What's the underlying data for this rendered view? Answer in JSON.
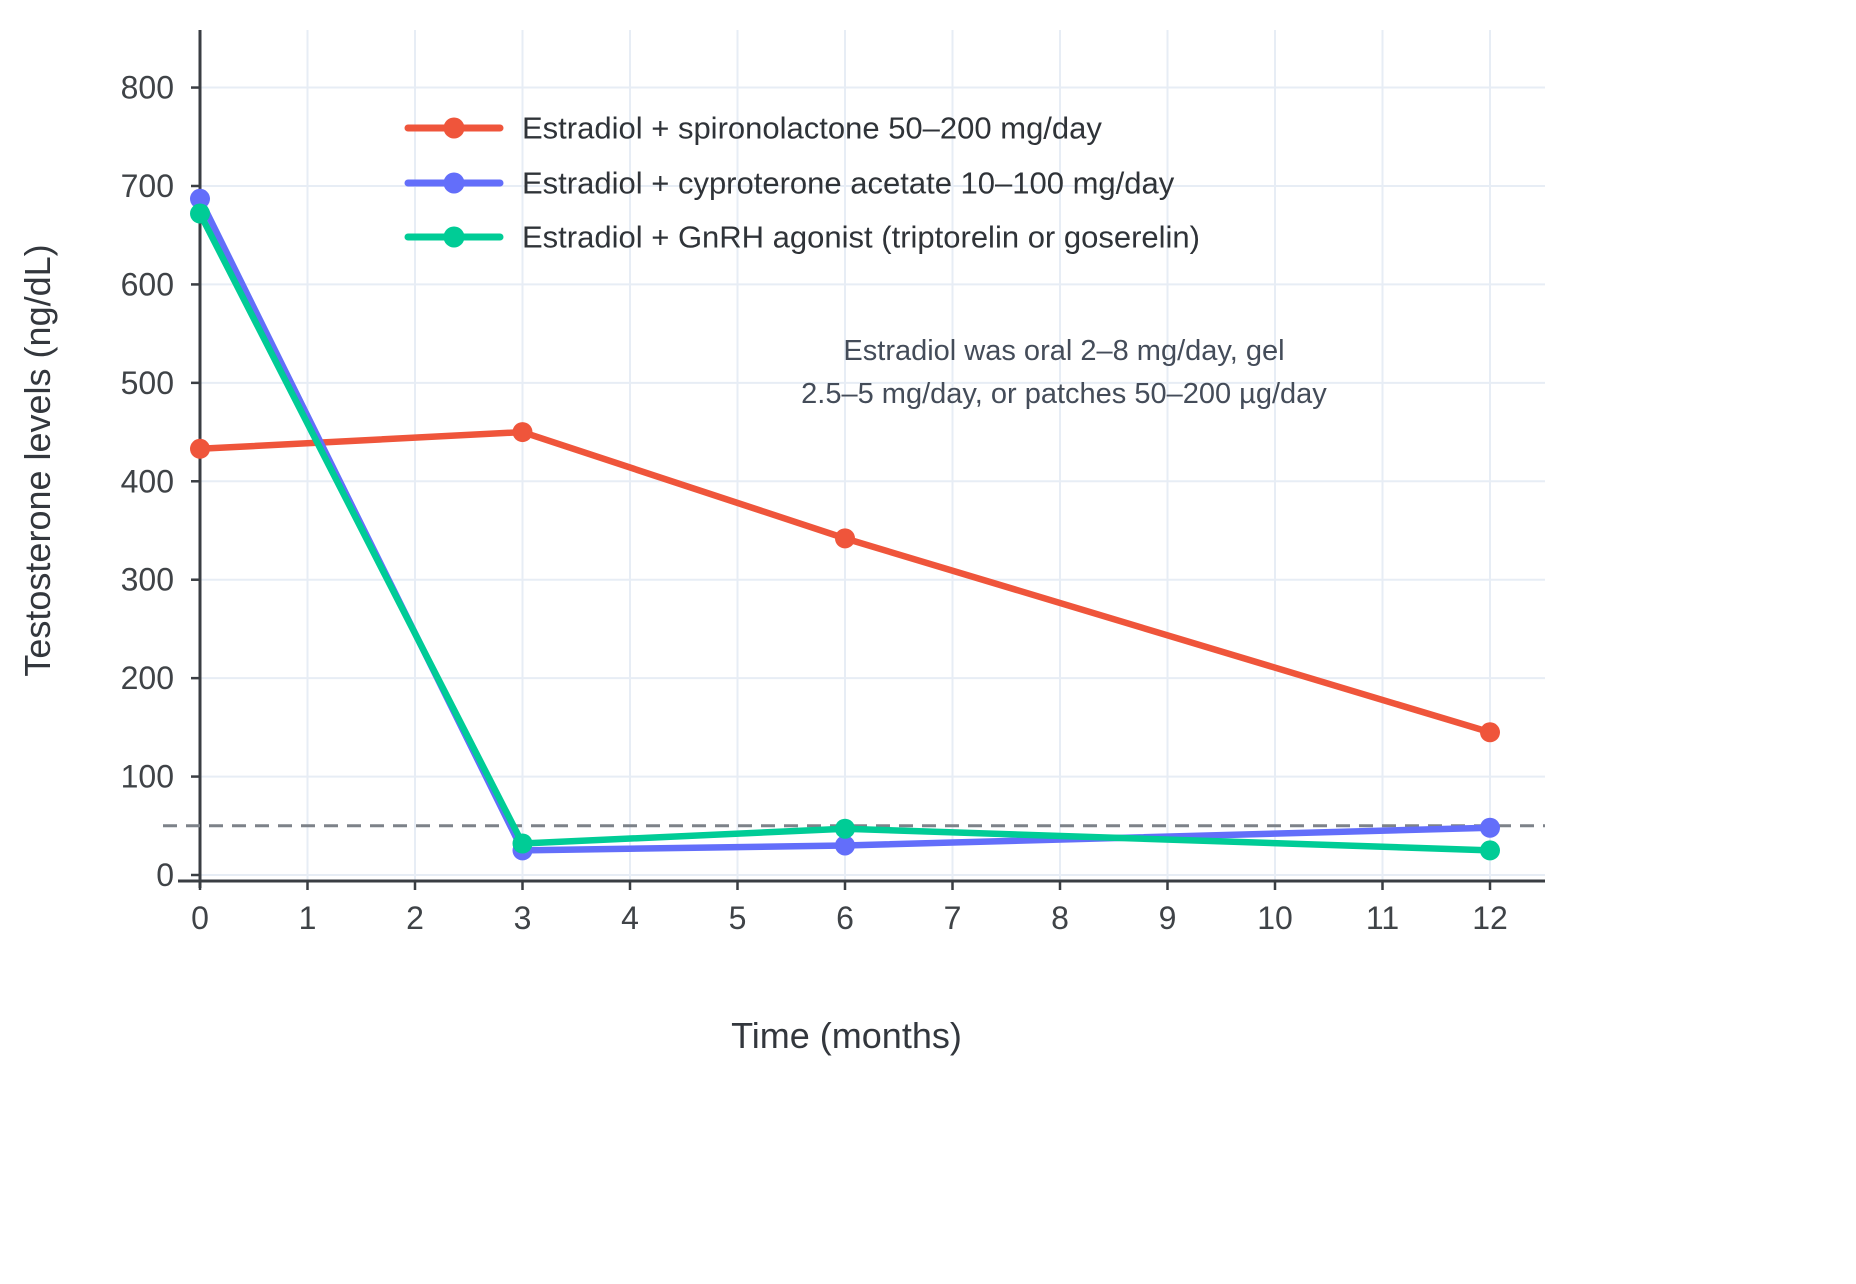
{
  "chart_data": {
    "type": "line",
    "title": "",
    "xlabel": "Time (months)",
    "ylabel": "Testosterone levels (ng/dL)",
    "x": [
      0,
      3,
      6,
      12
    ],
    "xticks": [
      0,
      1,
      2,
      3,
      4,
      5,
      6,
      7,
      8,
      9,
      10,
      11,
      12
    ],
    "yticks": [
      0,
      100,
      200,
      300,
      400,
      500,
      600,
      700,
      800
    ],
    "xlim": [
      0,
      12.5
    ],
    "ylim": [
      -15,
      855
    ],
    "grid": true,
    "legend_position": "top-left-inside",
    "series": [
      {
        "name": "Estradiol + spironolactone 50–200 mg/day",
        "color": "#EF553B",
        "values": [
          433,
          450,
          342,
          145
        ]
      },
      {
        "name": "Estradiol + cyproterone acetate 10–100 mg/day",
        "color": "#636EFA",
        "values": [
          687,
          25,
          30,
          48
        ]
      },
      {
        "name": "Estradiol + GnRH agonist (triptorelin or goserelin)",
        "color": "#00CC96",
        "values": [
          672,
          32,
          47,
          25
        ]
      }
    ],
    "threshold_line": {
      "y": 50,
      "style": "dashed",
      "color": "#7d8289"
    },
    "annotation": {
      "lines": [
        "Estradiol was oral 2–8 mg/day, gel",
        "2.5–5 mg/day, or patches 50–200 µg/day"
      ],
      "color": "#444c59"
    },
    "colors": {
      "grid": "#e7edf5",
      "axis": "#3a3e43",
      "tick_text": "#3f4347",
      "legend_text": "#2f3338",
      "title_text": "#33373d"
    }
  }
}
